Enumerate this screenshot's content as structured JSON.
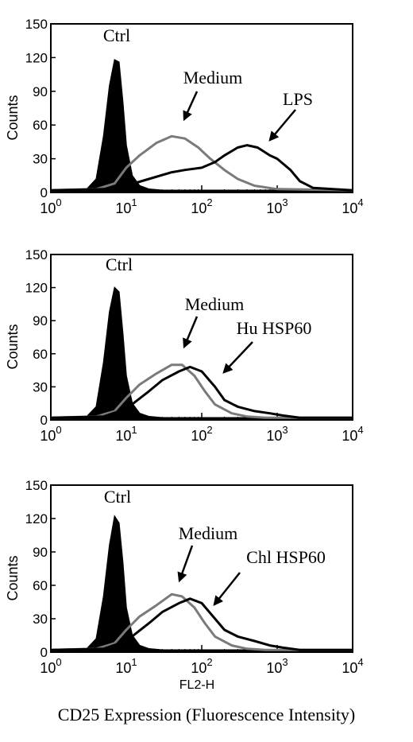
{
  "caption": "CD25 Expression (Fluorescence Intensity)",
  "chart_data": [
    {
      "type": "histogram",
      "ylabel": "Counts",
      "xlabel": "",
      "x_scale": "log",
      "xlim": [
        1,
        10000
      ],
      "ylim": [
        0,
        150
      ],
      "yticks": [
        "0",
        "30",
        "60",
        "90",
        "120",
        "150"
      ],
      "xticks": [
        {
          "base": "10",
          "exp": "0"
        },
        {
          "base": "10",
          "exp": "1"
        },
        {
          "base": "10",
          "exp": "2"
        },
        {
          "base": "10",
          "exp": "3"
        },
        {
          "base": "10",
          "exp": "4"
        }
      ],
      "series": [
        {
          "name": "Ctrl",
          "style": "filled",
          "color": "#000000",
          "x": [
            1,
            3,
            4,
            5,
            6,
            7,
            8,
            9,
            10,
            12,
            15,
            20,
            30,
            10000
          ],
          "y": [
            2,
            3,
            12,
            50,
            95,
            118,
            116,
            80,
            42,
            15,
            6,
            3,
            2,
            2
          ]
        },
        {
          "name": "Medium",
          "style": "outline",
          "color": "#7a7a7a",
          "x": [
            1,
            4,
            7,
            10,
            15,
            25,
            40,
            60,
            90,
            130,
            200,
            300,
            500,
            1000,
            10000
          ],
          "y": [
            2,
            3,
            8,
            22,
            33,
            44,
            50,
            48,
            40,
            30,
            20,
            12,
            6,
            3,
            2
          ]
        },
        {
          "name": "LPS",
          "style": "outline",
          "color": "#000000",
          "x": [
            1,
            5,
            10,
            20,
            40,
            60,
            100,
            150,
            200,
            300,
            400,
            550,
            800,
            1000,
            1500,
            2000,
            3000,
            10000
          ],
          "y": [
            2,
            3,
            6,
            12,
            18,
            20,
            22,
            27,
            33,
            40,
            42,
            40,
            33,
            30,
            20,
            10,
            4,
            2
          ]
        }
      ],
      "annotations": [
        {
          "text": "Ctrl",
          "target": "Ctrl"
        },
        {
          "text": "Medium",
          "target": "Medium"
        },
        {
          "text": "LPS",
          "target": "LPS"
        }
      ]
    },
    {
      "type": "histogram",
      "ylabel": "Counts",
      "xlabel": "",
      "x_scale": "log",
      "xlim": [
        1,
        10000
      ],
      "ylim": [
        0,
        150
      ],
      "yticks": [
        "0",
        "30",
        "60",
        "90",
        "120",
        "150"
      ],
      "xticks": [
        {
          "base": "10",
          "exp": "0"
        },
        {
          "base": "10",
          "exp": "1"
        },
        {
          "base": "10",
          "exp": "2"
        },
        {
          "base": "10",
          "exp": "3"
        },
        {
          "base": "10",
          "exp": "4"
        }
      ],
      "series": [
        {
          "name": "Ctrl",
          "style": "filled",
          "color": "#000000",
          "x": [
            1,
            3,
            4,
            5,
            6,
            7,
            8,
            9,
            10,
            12,
            15,
            20,
            30,
            10000
          ],
          "y": [
            2,
            3,
            12,
            52,
            98,
            120,
            116,
            78,
            40,
            15,
            6,
            3,
            2,
            2
          ]
        },
        {
          "name": "Medium",
          "style": "outline",
          "color": "#7a7a7a",
          "x": [
            1,
            4,
            7,
            10,
            15,
            25,
            40,
            55,
            80,
            110,
            150,
            250,
            400,
            700,
            10000
          ],
          "y": [
            2,
            3,
            8,
            20,
            32,
            42,
            50,
            50,
            40,
            26,
            14,
            6,
            3,
            2,
            2
          ]
        },
        {
          "name": "Hu HSP60",
          "style": "outline",
          "color": "#000000",
          "x": [
            1,
            5,
            10,
            20,
            30,
            50,
            70,
            100,
            150,
            200,
            300,
            500,
            800,
            1200,
            2000,
            10000
          ],
          "y": [
            2,
            3,
            10,
            26,
            36,
            44,
            48,
            44,
            30,
            18,
            12,
            8,
            6,
            4,
            2,
            2
          ]
        }
      ],
      "annotations": [
        {
          "text": "Ctrl",
          "target": "Ctrl"
        },
        {
          "text": "Medium",
          "target": "Medium"
        },
        {
          "text": "Hu HSP60",
          "target": "Hu HSP60"
        }
      ]
    },
    {
      "type": "histogram",
      "ylabel": "Counts",
      "xlabel": "FL2-H",
      "x_scale": "log",
      "xlim": [
        1,
        10000
      ],
      "ylim": [
        0,
        150
      ],
      "yticks": [
        "0",
        "30",
        "60",
        "90",
        "120",
        "150"
      ],
      "xticks": [
        {
          "base": "10",
          "exp": "0"
        },
        {
          "base": "10",
          "exp": "1"
        },
        {
          "base": "10",
          "exp": "2"
        },
        {
          "base": "10",
          "exp": "3"
        },
        {
          "base": "10",
          "exp": "4"
        }
      ],
      "series": [
        {
          "name": "Ctrl",
          "style": "filled",
          "color": "#000000",
          "x": [
            1,
            3,
            4,
            5,
            6,
            7,
            8,
            9,
            10,
            12,
            15,
            20,
            30,
            10000
          ],
          "y": [
            2,
            3,
            12,
            50,
            96,
            122,
            116,
            80,
            40,
            15,
            6,
            3,
            2,
            2
          ]
        },
        {
          "name": "Medium",
          "style": "outline",
          "color": "#7a7a7a",
          "x": [
            1,
            4,
            7,
            10,
            15,
            25,
            40,
            55,
            80,
            110,
            150,
            250,
            400,
            700,
            10000
          ],
          "y": [
            2,
            3,
            8,
            20,
            32,
            42,
            52,
            50,
            40,
            26,
            14,
            6,
            3,
            2,
            2
          ]
        },
        {
          "name": "Chl HSP60",
          "style": "outline",
          "color": "#000000",
          "x": [
            1,
            5,
            10,
            20,
            30,
            50,
            70,
            100,
            150,
            200,
            300,
            500,
            800,
            1200,
            2000,
            10000
          ],
          "y": [
            2,
            3,
            10,
            26,
            36,
            44,
            48,
            44,
            30,
            20,
            14,
            10,
            6,
            4,
            2,
            2
          ]
        }
      ],
      "annotations": [
        {
          "text": "Ctrl",
          "target": "Ctrl"
        },
        {
          "text": "Medium",
          "target": "Medium"
        },
        {
          "text": "Chl HSP60",
          "target": "Chl HSP60"
        }
      ]
    }
  ]
}
